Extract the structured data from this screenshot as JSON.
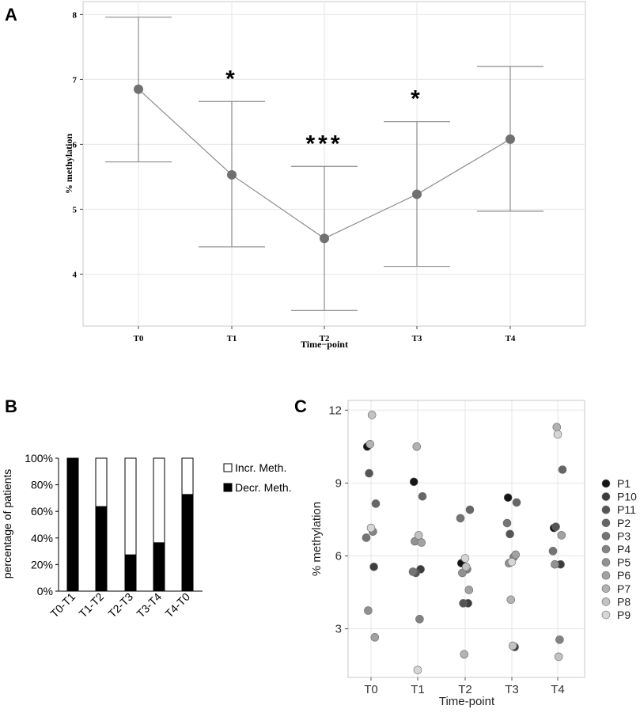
{
  "panels": {
    "a": "A",
    "b": "B",
    "c": "C"
  },
  "chart_data": [
    {
      "id": "A",
      "type": "line",
      "xlabel": "Time−point",
      "ylabel": "% methylation",
      "categories": [
        "T0",
        "T1",
        "T2",
        "T3",
        "T4"
      ],
      "values": [
        6.85,
        5.53,
        4.55,
        5.23,
        6.08
      ],
      "error_lower": [
        5.73,
        4.42,
        3.44,
        4.12,
        4.97
      ],
      "error_upper": [
        7.96,
        6.66,
        5.66,
        6.35,
        7.2
      ],
      "significance": [
        "",
        "*",
        "***",
        "*",
        ""
      ],
      "yticks": [
        4,
        5,
        6,
        7,
        8
      ],
      "ylim": [
        3.2,
        8.2
      ],
      "grid": true,
      "color": "#707070"
    },
    {
      "id": "B",
      "type": "bar",
      "stacked": true,
      "ylabel": "percentage of patients",
      "categories": [
        "T0-T1",
        "T1-T2",
        "T2-T3",
        "T3-T4",
        "T4-T0"
      ],
      "series": [
        {
          "name": "Decr. Meth.",
          "values": [
            100,
            63.6,
            27.3,
            36.4,
            72.7
          ],
          "color": "#000000"
        },
        {
          "name": "Incr. Meth.",
          "values": [
            0,
            36.4,
            72.7,
            63.6,
            27.3
          ],
          "color": "#ffffff"
        }
      ],
      "yticks": [
        "0%",
        "20%",
        "40%",
        "60%",
        "80%",
        "100%"
      ],
      "ylim": [
        0,
        100
      ],
      "legend": "right"
    },
    {
      "id": "C",
      "type": "scatter",
      "xlabel": "Time-point",
      "ylabel": "% methylation",
      "categories": [
        "T0",
        "T1",
        "T2",
        "T3",
        "T4"
      ],
      "yticks": [
        3,
        6,
        9,
        12
      ],
      "ylim": [
        1.0,
        12.4
      ],
      "grid": true,
      "legend": "right",
      "series": [
        {
          "name": "P1",
          "color": "#151515",
          "values": [
            10.5,
            9.05,
            5.7,
            8.4,
            7.15
          ]
        },
        {
          "name": "P10",
          "color": "#3c3c3c",
          "values": [
            5.55,
            5.45,
            4.05,
            2.25,
            5.65
          ]
        },
        {
          "name": "P11",
          "color": "#555555",
          "values": [
            9.4,
            5.3,
            4.05,
            6.9,
            7.2
          ]
        },
        {
          "name": "P2",
          "color": "#666666",
          "values": [
            8.15,
            8.45,
            7.9,
            8.2,
            9.55
          ]
        },
        {
          "name": "P3",
          "color": "#747474",
          "values": [
            6.75,
            5.35,
            7.55,
            7.35,
            6.2
          ]
        },
        {
          "name": "P4",
          "color": "#838383",
          "values": [
            7.0,
            3.4,
            5.45,
            5.95,
            2.55
          ]
        },
        {
          "name": "P5",
          "color": "#919191",
          "values": [
            3.75,
            6.6,
            5.3,
            5.7,
            5.65
          ]
        },
        {
          "name": "P6",
          "color": "#a2a2a2",
          "values": [
            2.65,
            6.55,
            4.6,
            6.05,
            6.85
          ]
        },
        {
          "name": "P7",
          "color": "#b2b2b2",
          "values": [
            10.6,
            10.5,
            1.95,
            4.2,
            11.3
          ]
        },
        {
          "name": "P8",
          "color": "#c2c2c2",
          "values": [
            11.8,
            6.85,
            5.55,
            2.3,
            1.85
          ]
        },
        {
          "name": "P9",
          "color": "#d6d6d6",
          "values": [
            7.15,
            1.3,
            5.9,
            5.75,
            11.0
          ]
        }
      ]
    }
  ]
}
